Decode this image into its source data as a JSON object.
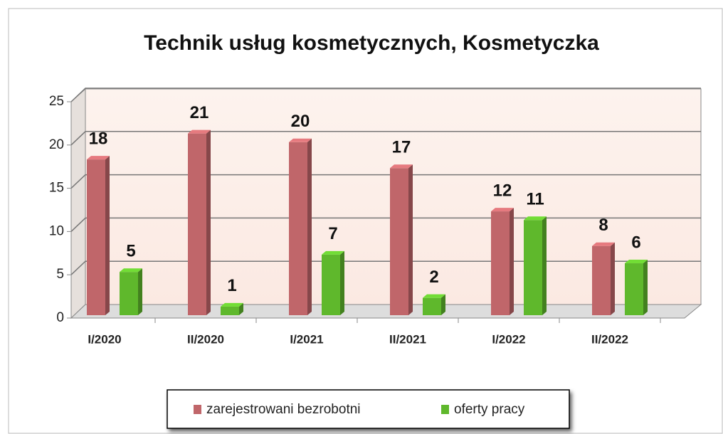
{
  "chart_data": {
    "type": "bar",
    "title": "Technik usług kosmetycznych, Kosmetyczka",
    "categories": [
      "I/2020",
      "II/2020",
      "I/2021",
      "II/2021",
      "I/2022",
      "II/2022"
    ],
    "series": [
      {
        "name": "zarejestrowani bezrobotni",
        "color": "#c0666a",
        "values": [
          18,
          21,
          20,
          17,
          12,
          8
        ]
      },
      {
        "name": "oferty pracy",
        "color": "#5fb82c",
        "values": [
          5,
          1,
          7,
          2,
          11,
          6
        ]
      }
    ],
    "ylim": [
      0,
      25
    ],
    "yticks": [
      0,
      5,
      10,
      15,
      20,
      25
    ],
    "grid": true,
    "legend": "bottom"
  }
}
